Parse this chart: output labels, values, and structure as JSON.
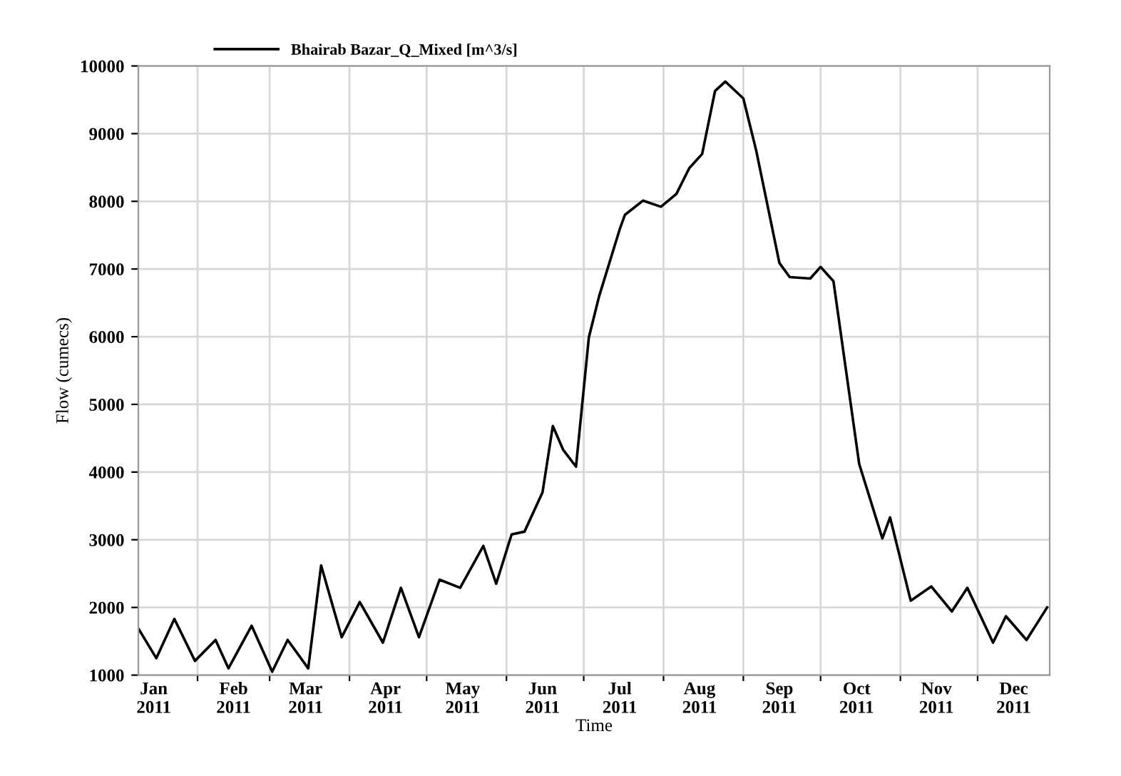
{
  "chart_data": {
    "type": "line",
    "xlabel": "Time",
    "ylabel": "Flow (cumecs)",
    "x": [
      "2011-01-09",
      "2011-01-16",
      "2011-01-23",
      "2011-01-31",
      "2011-02-08",
      "2011-02-13",
      "2011-02-22",
      "2011-03-02",
      "2011-03-08",
      "2011-03-16",
      "2011-03-21",
      "2011-03-29",
      "2011-04-05",
      "2011-04-14",
      "2011-04-21",
      "2011-04-28",
      "2011-05-06",
      "2011-05-14",
      "2011-05-23",
      "2011-05-28",
      "2011-06-03",
      "2011-06-08",
      "2011-06-15",
      "2011-06-19",
      "2011-06-23",
      "2011-06-28",
      "2011-07-03",
      "2011-07-07",
      "2011-07-15",
      "2011-07-17",
      "2011-07-24",
      "2011-07-31",
      "2011-08-06",
      "2011-08-11",
      "2011-08-16",
      "2011-08-21",
      "2011-08-25",
      "2011-09-01",
      "2011-09-06",
      "2011-09-15",
      "2011-09-19",
      "2011-09-27",
      "2011-10-01",
      "2011-10-06",
      "2011-10-16",
      "2011-10-25",
      "2011-10-28",
      "2011-11-05",
      "2011-11-13",
      "2011-11-21",
      "2011-11-27",
      "2011-12-07",
      "2011-12-12",
      "2011-12-20",
      "2011-12-28"
    ],
    "series": [
      {
        "name": "Bhairab Bazar_Q_Mixed [m^3/s]",
        "color": "#000000",
        "values": [
          1690,
          1250,
          1830,
          1210,
          1520,
          1100,
          1730,
          1050,
          1520,
          1100,
          2620,
          1560,
          2080,
          1480,
          2290,
          1560,
          2410,
          2290,
          2910,
          2350,
          3080,
          3120,
          3700,
          4680,
          4330,
          4080,
          5990,
          6600,
          7590,
          7800,
          8010,
          7920,
          8110,
          8490,
          8700,
          9630,
          9770,
          9520,
          8750,
          7090,
          6880,
          6860,
          7030,
          6820,
          4120,
          3020,
          3330,
          2100,
          2310,
          1940,
          2290,
          1480,
          1870,
          1520,
          2000
        ]
      }
    ],
    "xlim": [
      "2011-01-09",
      "2011-12-29"
    ],
    "xticks": [
      {
        "value": "2011-01-15",
        "label": "Jan\n2011"
      },
      {
        "value": "2011-02-01",
        "label": null
      },
      {
        "value": "2011-02-15",
        "label": "Feb\n2011"
      },
      {
        "value": "2011-03-01",
        "label": null
      },
      {
        "value": "2011-03-15",
        "label": "Mar\n2011"
      },
      {
        "value": "2011-04-01",
        "label": null
      },
      {
        "value": "2011-04-15",
        "label": "Apr\n2011"
      },
      {
        "value": "2011-05-01",
        "label": null
      },
      {
        "value": "2011-05-15",
        "label": "May\n2011"
      },
      {
        "value": "2011-06-01",
        "label": null
      },
      {
        "value": "2011-06-15",
        "label": "Jun\n2011"
      },
      {
        "value": "2011-07-01",
        "label": null
      },
      {
        "value": "2011-07-15",
        "label": "Jul\n2011"
      },
      {
        "value": "2011-08-01",
        "label": null
      },
      {
        "value": "2011-08-15",
        "label": "Aug\n2011"
      },
      {
        "value": "2011-09-01",
        "label": null
      },
      {
        "value": "2011-09-15",
        "label": "Sep\n2011"
      },
      {
        "value": "2011-10-01",
        "label": null
      },
      {
        "value": "2011-10-15",
        "label": "Oct\n2011"
      },
      {
        "value": "2011-11-01",
        "label": null
      },
      {
        "value": "2011-11-15",
        "label": "Nov\n2011"
      },
      {
        "value": "2011-12-01",
        "label": null
      },
      {
        "value": "2011-12-15",
        "label": "Dec\n2011"
      }
    ],
    "ylim": [
      1000,
      10000
    ],
    "yticks": [
      1000,
      2000,
      3000,
      4000,
      5000,
      6000,
      7000,
      8000,
      9000,
      10000
    ],
    "grid": true,
    "legend": "top",
    "marker": "none",
    "line_style": "solid"
  }
}
